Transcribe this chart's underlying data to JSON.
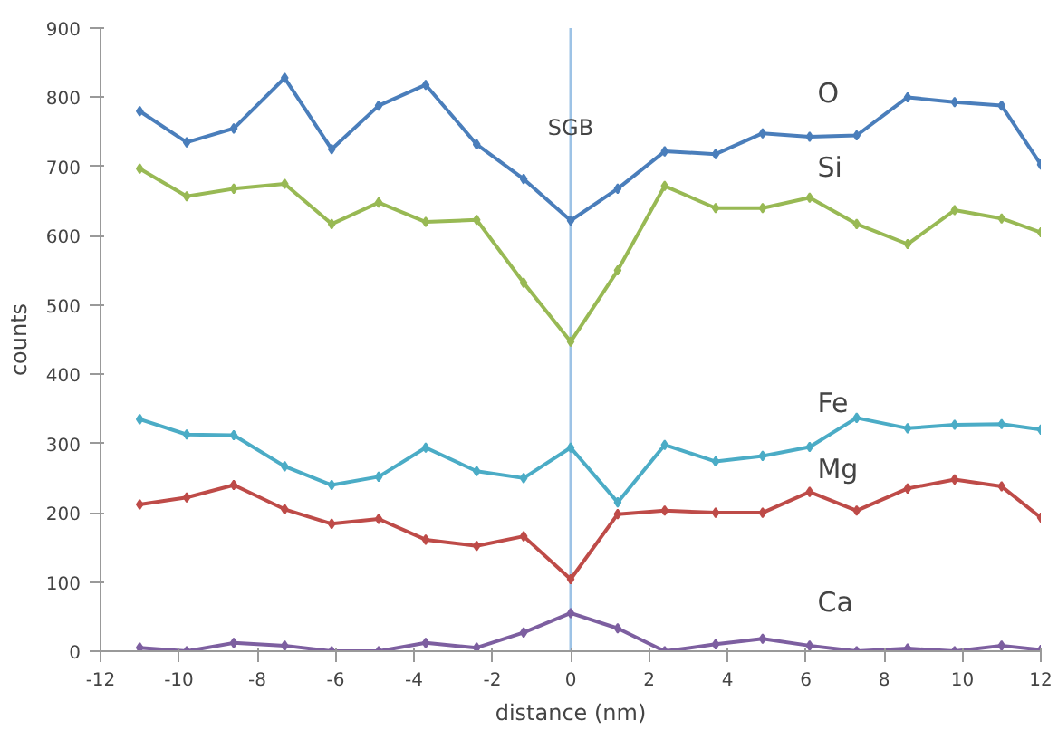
{
  "chart_data": {
    "type": "line",
    "xlabel": "distance (nm)",
    "ylabel": "counts",
    "x": [
      -11,
      -9.8,
      -8.6,
      -7.3,
      -6.1,
      -4.9,
      -3.7,
      -2.4,
      -1.2,
      0,
      1.2,
      2.4,
      3.7,
      4.9,
      6.1,
      7.3,
      8.6,
      9.8,
      11,
      12
    ],
    "series": [
      {
        "name": "O",
        "color": "#4a7ebb",
        "values": [
          780,
          735,
          755,
          828,
          725,
          788,
          818,
          732,
          682,
          622,
          668,
          722,
          718,
          748,
          743,
          745,
          800,
          793,
          788,
          703
        ]
      },
      {
        "name": "Si",
        "color": "#98b954",
        "values": [
          697,
          657,
          668,
          675,
          617,
          648,
          620,
          623,
          532,
          447,
          550,
          672,
          640,
          640,
          655,
          617,
          588,
          637,
          625,
          605
        ]
      },
      {
        "name": "Fe",
        "color": "#4bacc6",
        "values": [
          335,
          313,
          312,
          267,
          240,
          252,
          294,
          260,
          250,
          294,
          215,
          298,
          274,
          282,
          295,
          337,
          322,
          327,
          328,
          320
        ]
      },
      {
        "name": "Mg",
        "color": "#be4b48",
        "values": [
          212,
          222,
          240,
          205,
          184,
          191,
          161,
          152,
          166,
          104,
          198,
          203,
          200,
          200,
          230,
          203,
          235,
          248,
          238,
          193
        ]
      },
      {
        "name": "Ca",
        "color": "#7d5fa0",
        "values": [
          5,
          0,
          12,
          8,
          0,
          0,
          12,
          5,
          27,
          55,
          33,
          0,
          10,
          18,
          8,
          0,
          4,
          0,
          8,
          2
        ]
      }
    ],
    "xlim": [
      -12,
      12
    ],
    "ylim": [
      0,
      900
    ],
    "xticks": [
      -12,
      -10,
      -8,
      -6,
      -4,
      -2,
      0,
      2,
      4,
      6,
      8,
      10,
      12
    ],
    "yticks": [
      0,
      100,
      200,
      300,
      400,
      500,
      600,
      700,
      800,
      900
    ],
    "ref_lines": [
      {
        "axis": "x",
        "value": 0,
        "label": "SGB",
        "color": "#9dc3e6"
      }
    ],
    "grid": false,
    "marker": "diamond",
    "line_style": "solid"
  }
}
